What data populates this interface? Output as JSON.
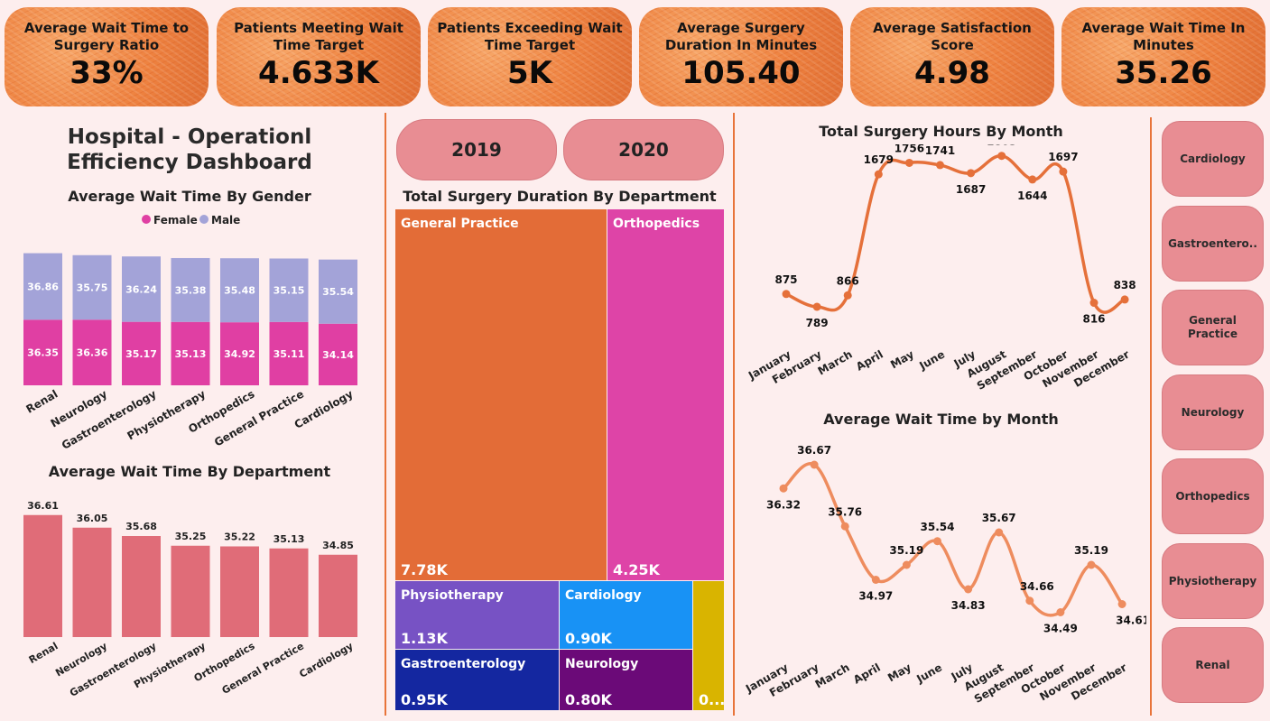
{
  "kpis": [
    {
      "title": "Average Wait Time to Surgery Ratio",
      "value": "33%"
    },
    {
      "title": "Patients Meeting Wait Time Target",
      "value": "4.633K"
    },
    {
      "title": "Patients Exceeding Wait Time Target",
      "value": "5K"
    },
    {
      "title": "Average Surgery Duration In Minutes",
      "value": "105.40"
    },
    {
      "title": "Average Satisfaction Score",
      "value": "4.98"
    },
    {
      "title": "Average Wait Time In Minutes",
      "value": "35.26"
    }
  ],
  "dashboard_title": "Hospital - Operationl Efficiency Dashboard",
  "years": [
    "2019",
    "2020"
  ],
  "department_slicer": [
    "Cardiology",
    "Gastroentero..",
    "General\nPractice",
    "Neurology",
    "Orthopedics",
    "Physiotherapy",
    "Renal"
  ],
  "colors": {
    "female": "#e03fa3",
    "male": "#a3a3d8",
    "dept_bar": "#e06c78",
    "line": "#e5703a",
    "line_light": "#ee8c5e",
    "accent": "#e8743a"
  },
  "chart_data": [
    {
      "type": "bar",
      "stacked": true,
      "title": "Average Wait Time By Gender",
      "legend_position": "top-center",
      "categories": [
        "Renal",
        "Neurology",
        "Gastroenterology",
        "Physiotherapy",
        "Orthopedics",
        "General Practice",
        "Cardiology"
      ],
      "series": [
        {
          "name": "Female",
          "values": [
            36.35,
            36.36,
            35.17,
            35.13,
            34.92,
            35.11,
            34.14
          ]
        },
        {
          "name": "Male",
          "values": [
            36.86,
            35.75,
            36.24,
            35.38,
            35.48,
            35.15,
            35.54
          ]
        }
      ]
    },
    {
      "type": "bar",
      "title": "Average Wait Time By Department",
      "categories": [
        "Renal",
        "Neurology",
        "Gastroenterology",
        "Physiotherapy",
        "Orthopedics",
        "General Practice",
        "Cardiology"
      ],
      "values": [
        36.61,
        36.05,
        35.68,
        35.25,
        35.22,
        35.13,
        34.85
      ]
    },
    {
      "type": "treemap",
      "title": "Total Surgery Duration By Department",
      "items": [
        {
          "name": "General Practice",
          "label": "7.78K",
          "value": 7.78,
          "color": "#e36c37"
        },
        {
          "name": "Orthopedics",
          "label": "4.25K",
          "value": 4.25,
          "color": "#de44a7"
        },
        {
          "name": "Physiotherapy",
          "label": "1.13K",
          "value": 1.13,
          "color": "#7752c4"
        },
        {
          "name": "Cardiology",
          "label": "0.90K",
          "value": 0.9,
          "color": "#1892f5"
        },
        {
          "name": "Gastroenterology",
          "label": "0.95K",
          "value": 0.95,
          "color": "#1427a0"
        },
        {
          "name": "Neurology",
          "label": "0.80K",
          "value": 0.8,
          "color": "#6b0a78"
        },
        {
          "name": "",
          "label": "0...",
          "value": 0.2,
          "color": "#d9b400"
        }
      ]
    },
    {
      "type": "line",
      "title": "Total Surgery Hours By Month",
      "x": [
        "January",
        "February",
        "March",
        "April",
        "May",
        "June",
        "July",
        "August",
        "September",
        "October",
        "November",
        "December"
      ],
      "values": [
        875,
        789,
        866,
        1679,
        1756,
        1741,
        1687,
        1803,
        1644,
        1697,
        816,
        838
      ]
    },
    {
      "type": "line",
      "title": "Average Wait Time by Month",
      "x": [
        "January",
        "February",
        "March",
        "April",
        "May",
        "June",
        "July",
        "August",
        "September",
        "October",
        "November",
        "December"
      ],
      "values": [
        36.32,
        36.67,
        35.76,
        34.97,
        35.19,
        35.54,
        34.83,
        35.67,
        34.66,
        34.49,
        35.19,
        34.61
      ]
    }
  ]
}
